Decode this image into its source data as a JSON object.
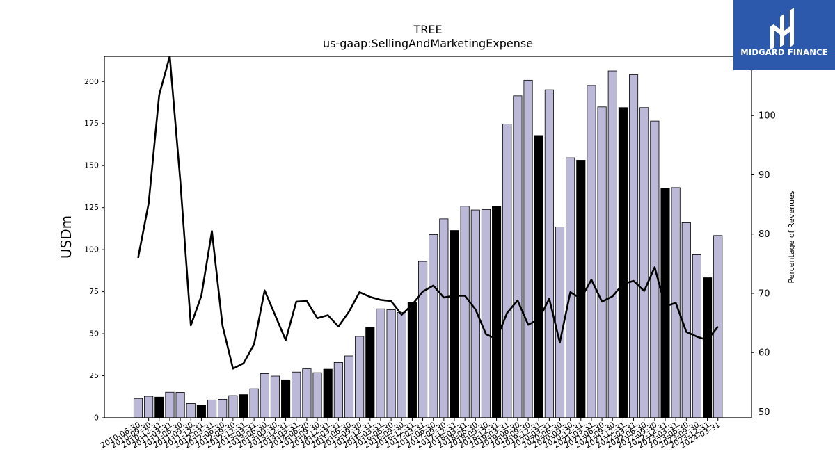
{
  "chart_data": {
    "type": "bar+line",
    "title": "TREE",
    "subtitle": "us-gaap:SellingAndMarketingExpense",
    "ylabel": "USDm",
    "y2label": "Percentage of Revenues",
    "ylim": [
      0,
      215
    ],
    "y2lim": [
      49,
      110
    ],
    "yticks": [
      0,
      25,
      50,
      75,
      100,
      125,
      150,
      175,
      200
    ],
    "y2ticks": [
      50,
      60,
      70,
      80,
      90,
      100
    ],
    "categories": [
      "2010-06-30",
      "2010-09-30",
      "2010-12-31",
      "2011-03-31",
      "2011-06-30",
      "2011-09-30",
      "2011-12-31",
      "2012-03-31",
      "2012-06-30",
      "2012-09-30",
      "2012-12-31",
      "2013-03-31",
      "2013-06-30",
      "2013-09-30",
      "2013-12-31",
      "2014-03-31",
      "2014-06-30",
      "2014-09-30",
      "2014-12-31",
      "2015-03-31",
      "2015-06-30",
      "2015-09-30",
      "2015-12-31",
      "2016-03-31",
      "2016-06-30",
      "2016-09-30",
      "2016-12-31",
      "2017-03-31",
      "2017-06-30",
      "2017-09-30",
      "2017-12-31",
      "2018-03-31",
      "2018-06-30",
      "2018-09-30",
      "2018-12-31",
      "2019-03-31",
      "2019-06-30",
      "2019-09-30",
      "2019-12-31",
      "2020-03-31",
      "2020-06-30",
      "2020-09-30",
      "2020-12-31",
      "2021-03-31",
      "2021-06-30",
      "2021-09-30",
      "2021-12-31",
      "2022-03-31",
      "2022-06-30",
      "2022-09-30",
      "2022-12-31",
      "2023-03-31",
      "2023-06-30",
      "2023-09-30",
      "2023-12-31",
      "2024-03-31"
    ],
    "bar_values": [
      11.5,
      12.8,
      12.3,
      15.2,
      15.1,
      8.5,
      7.3,
      10.6,
      11,
      13.2,
      13.8,
      17.3,
      26.3,
      24.8,
      22.6,
      27.2,
      29.1,
      26.8,
      28.9,
      32.9,
      36.8,
      48.4,
      53.8,
      64.8,
      64.3,
      62.7,
      68.6,
      93,
      109,
      118.3,
      111.4,
      125.8,
      123.6,
      123.9,
      125.8,
      174.7,
      191.5,
      200.8,
      167.9,
      195.1,
      113.5,
      154.6,
      153.2,
      197.7,
      184.9,
      206.3,
      184.5,
      204,
      184.5,
      176.5,
      136.5,
      136.9,
      116,
      97,
      83.3,
      108.4
    ],
    "bar_highlight": [
      false,
      false,
      true,
      false,
      false,
      false,
      true,
      false,
      false,
      false,
      true,
      false,
      false,
      false,
      true,
      false,
      false,
      false,
      true,
      false,
      false,
      false,
      true,
      false,
      false,
      false,
      true,
      false,
      false,
      false,
      true,
      false,
      false,
      false,
      true,
      false,
      false,
      false,
      true,
      false,
      false,
      false,
      true,
      false,
      false,
      false,
      true,
      false,
      false,
      false,
      true,
      false,
      false,
      false,
      true,
      false
    ],
    "line_values": [
      76,
      85.2,
      103.5,
      110,
      89,
      64.6,
      69.6,
      80.5,
      64.6,
      57.3,
      58.2,
      61.4,
      70.5,
      66.3,
      62.1,
      68.6,
      68.7,
      65.8,
      66.3,
      64.4,
      66.9,
      70.2,
      69.4,
      68.9,
      68.7,
      66.4,
      68.1,
      70.3,
      71.3,
      69.3,
      69.6,
      69.6,
      67.3,
      63.1,
      62.3,
      66.7,
      68.8,
      64.7,
      65.6,
      69.1,
      61.7,
      70.2,
      69.1,
      72.3,
      68.6,
      69.5,
      71.6,
      72.1,
      70.4,
      74.4,
      67.8,
      68.4,
      63.5,
      62.7,
      62.1,
      64.4
    ],
    "colors": {
      "bar": "#bbb8d8",
      "bar_highlight": "#000000",
      "line": "#000000",
      "logo_bg": "#2d59ad"
    }
  },
  "logo": {
    "text": "MIDGARD FINANCE"
  }
}
